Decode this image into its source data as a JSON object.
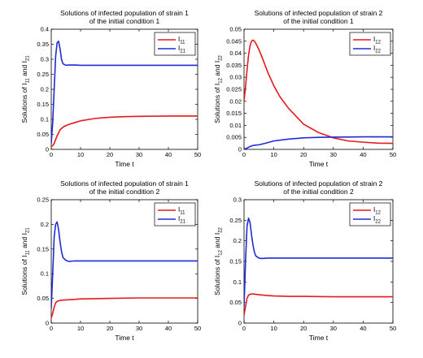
{
  "chart_data": [
    {
      "type": "line",
      "title": [
        "Solutions of infected population of strain 1",
        "of the initial condition 1"
      ],
      "xlabel": "Time t",
      "ylabel": {
        "pre": "Solutions of I",
        "s1": "11",
        "mid": " and I",
        "s2": "21"
      },
      "xlim": [
        0,
        50
      ],
      "ylim": [
        0,
        0.4
      ],
      "xticks": [
        "0",
        "10",
        "20",
        "30",
        "40",
        "50"
      ],
      "yticks": [
        "0",
        "0.05",
        "0.1",
        "0.15",
        "0.2",
        "0.25",
        "0.3",
        "0.35",
        "0.4"
      ],
      "legend_position": "top-right",
      "series": [
        {
          "name": {
            "base": "I",
            "sub": "11"
          },
          "color": "#e41a1c",
          "x": [
            0,
            0.5,
            1,
            2,
            3,
            4,
            5,
            6,
            8,
            10,
            15,
            20,
            25,
            30,
            40,
            50
          ],
          "y": [
            0.01,
            0.012,
            0.02,
            0.045,
            0.065,
            0.074,
            0.079,
            0.083,
            0.089,
            0.095,
            0.103,
            0.107,
            0.109,
            0.11,
            0.111,
            0.111
          ]
        },
        {
          "name": {
            "base": "I",
            "sub": "21"
          },
          "color": "#1f2bd6",
          "x": [
            0,
            0.5,
            1,
            1.5,
            2,
            2.5,
            3,
            3.5,
            4,
            5,
            6,
            8,
            10,
            20,
            30,
            40,
            50
          ],
          "y": [
            0.02,
            0.09,
            0.2,
            0.31,
            0.355,
            0.36,
            0.335,
            0.3,
            0.285,
            0.28,
            0.281,
            0.281,
            0.28,
            0.28,
            0.28,
            0.28,
            0.28
          ]
        }
      ]
    },
    {
      "type": "line",
      "title": [
        "Solutions of infected population of strain 2",
        "of the initial condition 1"
      ],
      "xlabel": "Time t",
      "ylabel": {
        "pre": "Solutions of I",
        "s1": "12",
        "mid": " and I",
        "s2": "22"
      },
      "xlim": [
        0,
        50
      ],
      "ylim": [
        0,
        0.05
      ],
      "xticks": [
        "0",
        "10",
        "20",
        "30",
        "40",
        "50"
      ],
      "yticks": [
        "0",
        "0.005",
        "0.01",
        "0.015",
        "0.02",
        "0.025",
        "0.03",
        "0.035",
        "0.04",
        "0.045",
        "0.05"
      ],
      "legend_position": "top-right",
      "series": [
        {
          "name": {
            "base": "I",
            "sub": "12"
          },
          "color": "#e41a1c",
          "x": [
            0,
            0.5,
            1,
            1.5,
            2,
            2.5,
            3,
            3.5,
            4,
            5,
            6,
            8,
            10,
            12,
            15,
            20,
            25,
            30,
            35,
            40,
            45,
            50
          ],
          "y": [
            0.02,
            0.026,
            0.033,
            0.039,
            0.043,
            0.045,
            0.0455,
            0.045,
            0.044,
            0.0415,
            0.0385,
            0.032,
            0.0265,
            0.022,
            0.017,
            0.0105,
            0.007,
            0.0048,
            0.0035,
            0.003,
            0.0026,
            0.0025
          ]
        },
        {
          "name": {
            "base": "I",
            "sub": "22"
          },
          "color": "#1f2bd6",
          "x": [
            0,
            1,
            2,
            3,
            4,
            5,
            7,
            10,
            15,
            20,
            25,
            30,
            40,
            50
          ],
          "y": [
            0.0001,
            0.0005,
            0.0012,
            0.0016,
            0.0018,
            0.0019,
            0.0025,
            0.0035,
            0.0043,
            0.0048,
            0.005,
            0.0051,
            0.0052,
            0.0052
          ]
        }
      ]
    },
    {
      "type": "line",
      "title": [
        "Solutions of infected population of strain 1",
        "of the initial condition 2"
      ],
      "xlabel": "Time t",
      "ylabel": {
        "pre": "Solutions of I",
        "s1": "11",
        "mid": " and I",
        "s2": "21"
      },
      "xlim": [
        0,
        50
      ],
      "ylim": [
        0,
        0.25
      ],
      "xticks": [
        "0",
        "10",
        "20",
        "30",
        "40",
        "50"
      ],
      "yticks": [
        "0",
        "0.05",
        "0.1",
        "0.15",
        "0.2",
        "0.25"
      ],
      "legend_position": "top-right",
      "series": [
        {
          "name": {
            "base": "I",
            "sub": "11"
          },
          "color": "#e41a1c",
          "x": [
            0,
            0.5,
            1,
            1.5,
            2,
            3,
            4,
            5,
            8,
            10,
            15,
            20,
            30,
            40,
            50
          ],
          "y": [
            0.01,
            0.02,
            0.032,
            0.041,
            0.044,
            0.046,
            0.0465,
            0.047,
            0.048,
            0.049,
            0.0495,
            0.05,
            0.051,
            0.051,
            0.051
          ]
        },
        {
          "name": {
            "base": "I",
            "sub": "21"
          },
          "color": "#1f2bd6",
          "x": [
            0,
            0.5,
            1,
            1.5,
            2,
            2.5,
            3,
            3.5,
            4,
            5,
            6,
            8,
            10,
            20,
            30,
            40,
            50
          ],
          "y": [
            0.03,
            0.1,
            0.175,
            0.2,
            0.205,
            0.19,
            0.165,
            0.145,
            0.133,
            0.127,
            0.125,
            0.126,
            0.126,
            0.126,
            0.126,
            0.126,
            0.126
          ]
        }
      ]
    },
    {
      "type": "line",
      "title": [
        "Solutions of infected population of strain 2",
        "of the initial condition 2"
      ],
      "xlabel": "Time t",
      "ylabel": {
        "pre": "Solutions of I",
        "s1": "12",
        "mid": " and I",
        "s2": "22"
      },
      "xlim": [
        0,
        50
      ],
      "ylim": [
        0,
        0.3
      ],
      "xticks": [
        "0",
        "10",
        "20",
        "30",
        "40",
        "50"
      ],
      "yticks": [
        "0",
        "0.05",
        "0.1",
        "0.15",
        "0.2",
        "0.25",
        "0.3"
      ],
      "legend_position": "top-right",
      "series": [
        {
          "name": {
            "base": "I",
            "sub": "12"
          },
          "color": "#e41a1c",
          "x": [
            0,
            0.5,
            1,
            1.5,
            2,
            3,
            4,
            5,
            8,
            10,
            15,
            20,
            30,
            40,
            50
          ],
          "y": [
            0.02,
            0.04,
            0.06,
            0.068,
            0.07,
            0.071,
            0.07,
            0.069,
            0.067,
            0.066,
            0.065,
            0.065,
            0.064,
            0.064,
            0.064
          ]
        },
        {
          "name": {
            "base": "I",
            "sub": "22"
          },
          "color": "#1f2bd6",
          "x": [
            0,
            0.5,
            1,
            1.5,
            2,
            2.5,
            3,
            3.5,
            4,
            5,
            6,
            8,
            10,
            20,
            30,
            40,
            50
          ],
          "y": [
            0.04,
            0.15,
            0.235,
            0.255,
            0.245,
            0.215,
            0.19,
            0.172,
            0.163,
            0.158,
            0.157,
            0.158,
            0.158,
            0.158,
            0.158,
            0.158,
            0.158
          ]
        }
      ]
    }
  ]
}
